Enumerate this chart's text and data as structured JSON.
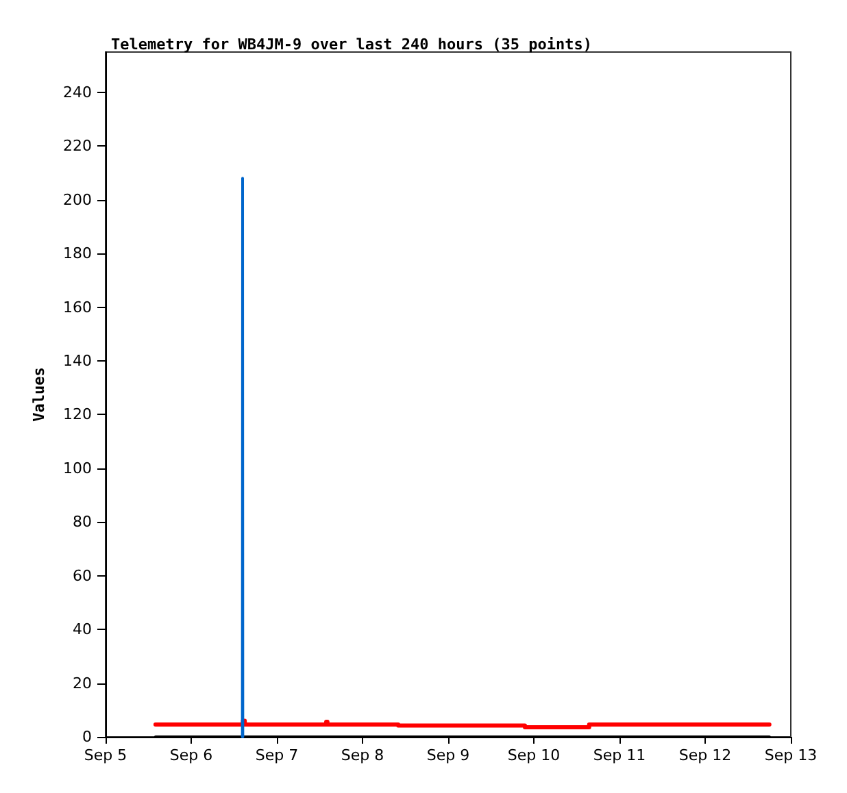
{
  "chart_data": {
    "type": "line",
    "title": "Telemetry for WB4JM-9 over last 240 hours (35 points)",
    "ylabel": "Values",
    "series": [
      {
        "type": "step",
        "color": "#ff0000",
        "x": [
          "--09-05T14:00",
          "--09-06T14:30",
          "--09-06T15:00",
          "--09-07T13:50",
          "--09-07T14:10",
          "--09-08T10:00",
          "--09-09T21:30",
          "--09-10T15:30",
          "--09-12T18:00"
        ],
        "values": [
          4.6,
          6,
          4.6,
          5.6,
          4.6,
          4.2,
          3.6,
          4.6,
          4.6
        ]
      },
      {
        "color": "#000000",
        "x": [
          "--09-05T14:00",
          "--09-12T18:00"
        ],
        "values": [
          0,
          0
        ]
      },
      {
        "color": "#0066cc",
        "x": [
          "--09-06T14:20",
          "--09-06T14:24",
          "--09-06T14:28"
        ],
        "values": [
          0,
          208,
          0
        ]
      }
    ],
    "xlim": [
      "--09-05",
      "--09-13"
    ],
    "xticks": [
      {
        "value": "--09-05",
        "label": "Sep 5"
      },
      {
        "value": "--09-06",
        "label": "Sep 6"
      },
      {
        "value": "--09-07",
        "label": "Sep 7"
      },
      {
        "value": "--09-08",
        "label": "Sep 8"
      },
      {
        "value": "--09-09",
        "label": "Sep 9"
      },
      {
        "value": "--09-10",
        "label": "Sep 10"
      },
      {
        "value": "--09-11",
        "label": "Sep 11"
      },
      {
        "value": "--09-12",
        "label": "Sep 12"
      },
      {
        "value": "--09-13",
        "label": "Sep 13"
      }
    ],
    "ylim": [
      0,
      255
    ],
    "yticks": [
      0,
      20,
      40,
      60,
      80,
      100,
      120,
      140,
      160,
      180,
      200,
      220,
      240
    ],
    "grid": false,
    "marker": "none",
    "line_style": "solid"
  }
}
